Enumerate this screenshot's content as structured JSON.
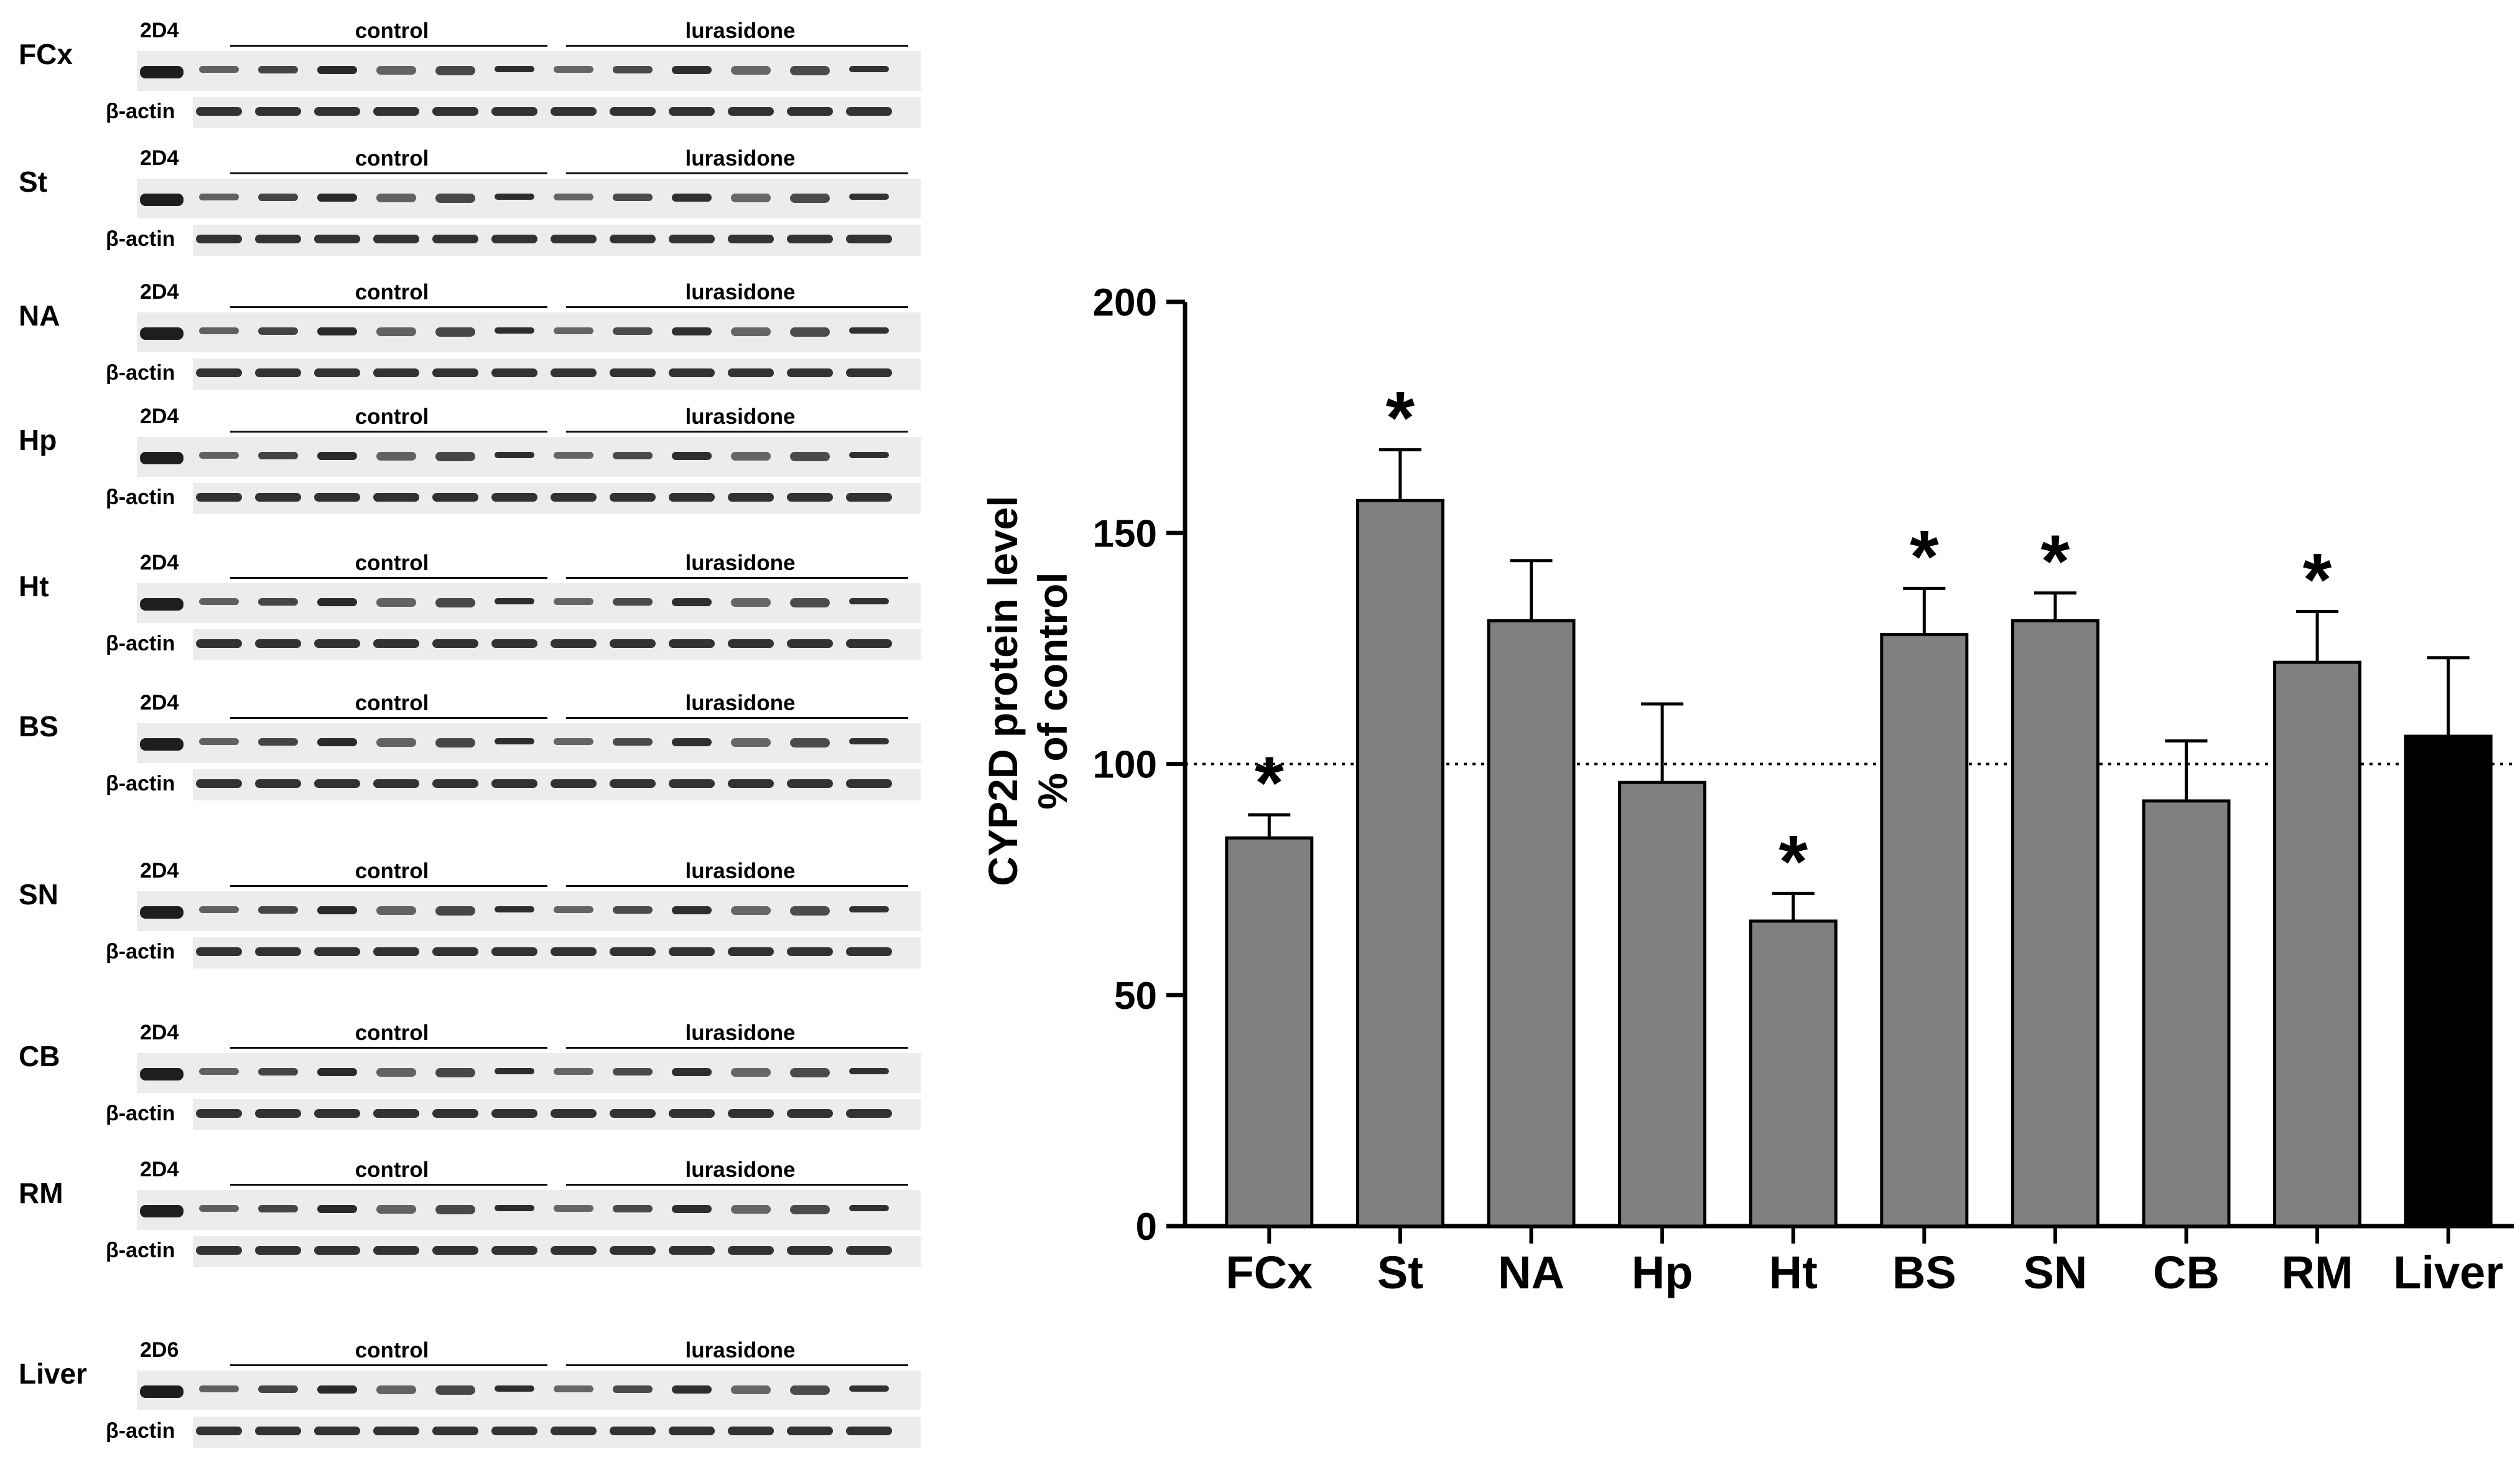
{
  "blots": {
    "groups": [
      "control",
      "lurasidone"
    ],
    "actin_label": "β-actin",
    "rows": [
      {
        "region": "FCx",
        "antibody": "2D4"
      },
      {
        "region": "St",
        "antibody": "2D4"
      },
      {
        "region": "NA",
        "antibody": "2D4"
      },
      {
        "region": "Hp",
        "antibody": "2D4"
      },
      {
        "region": "Ht",
        "antibody": "2D4"
      },
      {
        "region": "BS",
        "antibody": "2D4"
      },
      {
        "region": "SN",
        "antibody": "2D4"
      },
      {
        "region": "CB",
        "antibody": "2D4"
      },
      {
        "region": "RM",
        "antibody": "2D4"
      },
      {
        "region": "Liver",
        "antibody": "2D6"
      }
    ]
  },
  "chart_data": {
    "type": "bar",
    "ylabel_line1": "CYP2D protein level",
    "ylabel_line2": "% of control",
    "ylim": [
      0,
      200
    ],
    "yticks": [
      0,
      50,
      100,
      150,
      200
    ],
    "reference_line": 100,
    "significance_marker": "*",
    "bar_colors": {
      "brain": "#808080",
      "liver": "#000000"
    },
    "categories": [
      "FCx",
      "St",
      "NA",
      "Hp",
      "Ht",
      "BS",
      "SN",
      "CB",
      "RM",
      "Liver"
    ],
    "values": [
      84,
      157,
      131,
      96,
      66,
      128,
      131,
      92,
      122,
      106
    ],
    "errors": [
      5,
      11,
      13,
      17,
      6,
      10,
      6,
      13,
      11,
      17
    ],
    "significant": [
      true,
      true,
      false,
      false,
      true,
      true,
      true,
      false,
      true,
      false
    ]
  }
}
